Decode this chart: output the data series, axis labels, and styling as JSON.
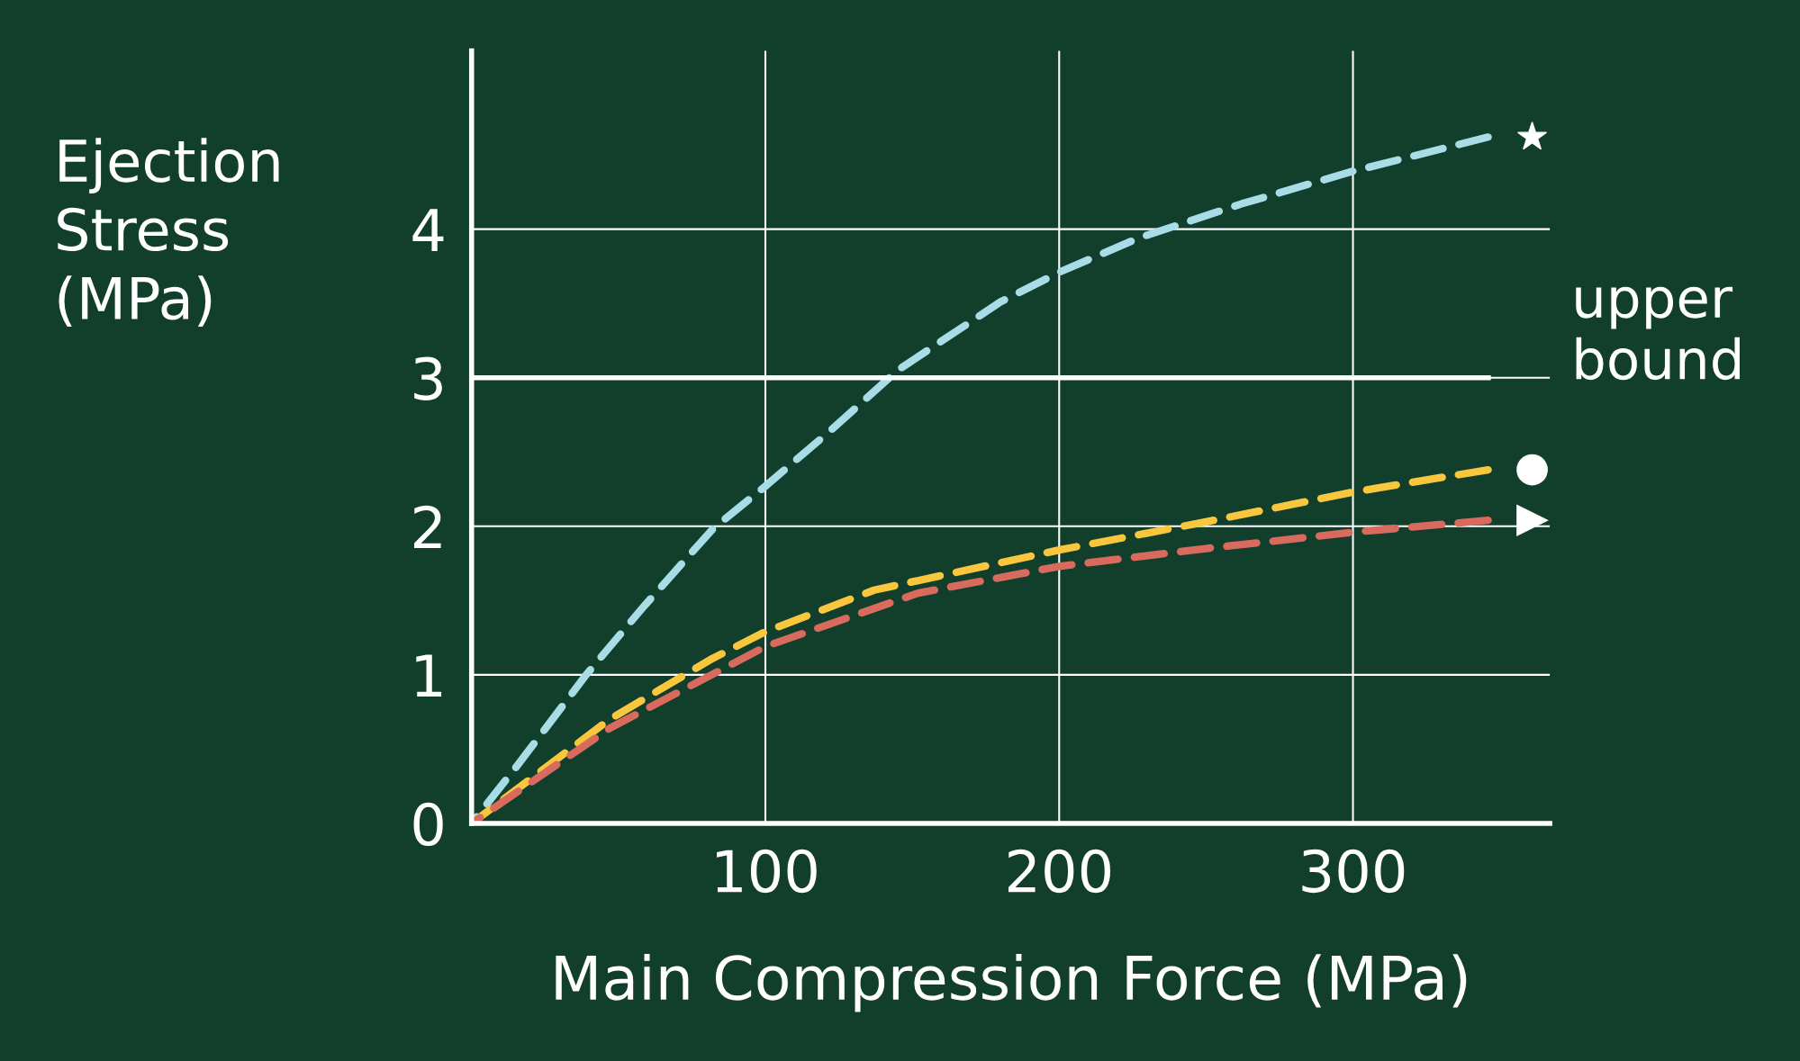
{
  "chart_data": {
    "type": "line",
    "xlabel": "Main Compression Force (MPa)",
    "ylabel": "Ejection\nStress\n(MPa)",
    "xlim": [
      0,
      367
    ],
    "ylim": [
      0,
      5.2
    ],
    "xticks": [
      100,
      200,
      300
    ],
    "yticks": [
      0,
      1,
      2,
      3,
      4
    ],
    "grid": true,
    "line_style": "dashed",
    "series": [
      {
        "color": "#a8dce6",
        "x": [
          0,
          15.6,
          39,
          58.6,
          82,
          100,
          121.9,
          145,
          180,
          200,
          227,
          262,
          300,
          346
        ],
        "values": [
          0,
          0.39,
          1.0,
          1.46,
          1.98,
          2.27,
          2.64,
          3.05,
          3.51,
          3.71,
          3.94,
          4.17,
          4.39,
          4.62
        ]
      },
      {
        "color": "#f9c73e",
        "x": [
          0,
          47,
          82,
          100,
          137,
          200,
          250,
          300,
          346
        ],
        "values": [
          0,
          0.7,
          1.11,
          1.29,
          1.57,
          1.84,
          2.03,
          2.23,
          2.38
        ]
      },
      {
        "color": "#d96b5e",
        "x": [
          0,
          47,
          100,
          152,
          200,
          250,
          300,
          346
        ],
        "values": [
          0,
          0.64,
          1.19,
          1.55,
          1.73,
          1.85,
          1.96,
          2.04
        ]
      }
    ],
    "ref_lines": [
      {
        "axis": "y",
        "value": 3,
        "label": "upper bound",
        "color": "#ffffff",
        "line_style": "solid"
      }
    ]
  }
}
